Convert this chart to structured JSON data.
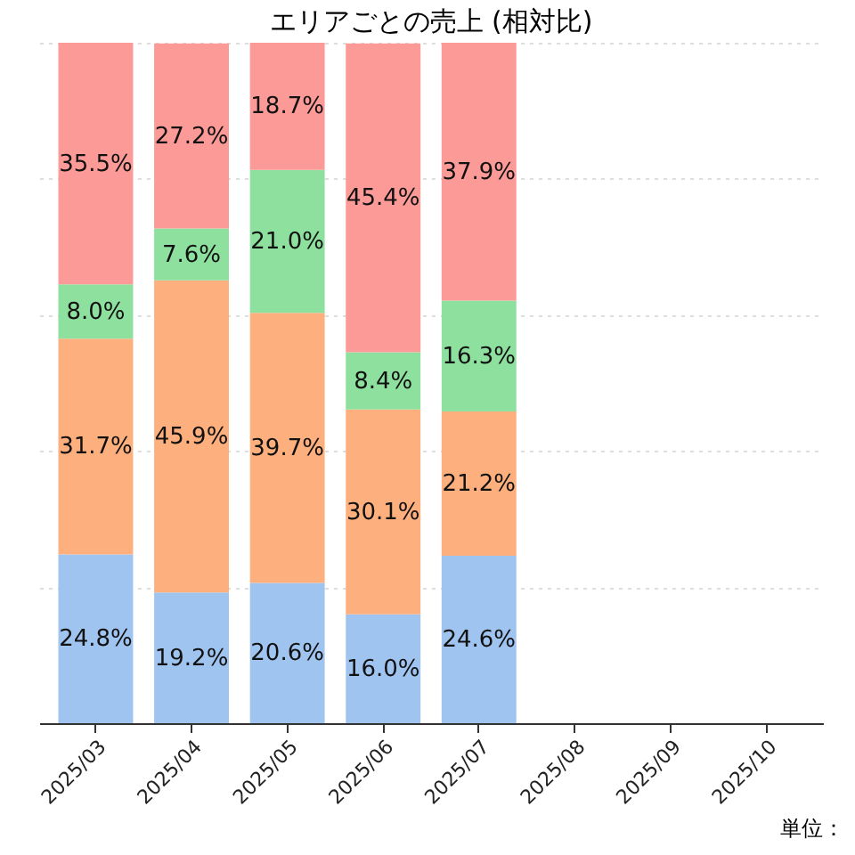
{
  "chart_data": {
    "type": "bar",
    "title": "エリアごとの売上 (相対比)",
    "stacked": true,
    "categories": [
      "2025/03",
      "2025/04",
      "2025/05",
      "2025/06",
      "2025/07",
      "2025/08",
      "2025/09",
      "2025/10"
    ],
    "series": [
      {
        "color": "#a0c4f0",
        "values": [
          24.8,
          19.2,
          20.6,
          16.0,
          24.6,
          null,
          null,
          null
        ],
        "value_labels": [
          "24.8%",
          "19.2%",
          "20.6%",
          "16.0%",
          "24.6%",
          null,
          null,
          null
        ]
      },
      {
        "color": "#fdb07e",
        "values": [
          31.7,
          45.9,
          39.7,
          30.1,
          21.2,
          null,
          null,
          null
        ],
        "value_labels": [
          "31.7%",
          "45.9%",
          "39.7%",
          "30.1%",
          "21.2%",
          null,
          null,
          null
        ]
      },
      {
        "color": "#8ee09e",
        "values": [
          8.0,
          7.6,
          21.0,
          8.4,
          16.3,
          null,
          null,
          null
        ],
        "value_labels": [
          "8.0%",
          "7.6%",
          "21.0%",
          "8.4%",
          "16.3%",
          null,
          null,
          null
        ]
      },
      {
        "color": "#fc9a98",
        "values": [
          35.5,
          27.2,
          18.7,
          45.4,
          37.9,
          null,
          null,
          null
        ],
        "value_labels": [
          "35.5%",
          "27.2%",
          "18.7%",
          "45.4%",
          "37.9%",
          null,
          null,
          null
        ]
      }
    ],
    "ylim": [
      0,
      100
    ],
    "yticks": [
      {
        "value": 0,
        "label": null
      },
      {
        "value": 20,
        "label": null
      },
      {
        "value": 40,
        "label": null
      },
      {
        "value": 60,
        "label": null
      },
      {
        "value": 80,
        "label": null
      },
      {
        "value": 100,
        "label": null
      }
    ],
    "grid": "y",
    "tick_labels": "x",
    "annotations": [
      "単位："
    ]
  }
}
